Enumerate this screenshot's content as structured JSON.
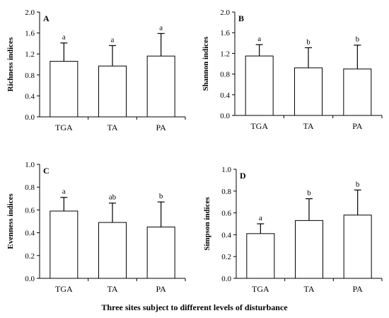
{
  "figure": {
    "xlabel": "Three sites subject to different levels of disturbance"
  },
  "chart_data": [
    {
      "type": "bar",
      "panel": "A",
      "ylabel": "Richness indices",
      "categories": [
        "TGA",
        "TA",
        "PA"
      ],
      "values": [
        1.06,
        0.97,
        1.16
      ],
      "errors": [
        0.35,
        0.39,
        0.43
      ],
      "letters": [
        "a",
        "a",
        "a"
      ],
      "ylim": [
        0,
        2.0
      ],
      "yticks": [
        "0.0",
        "0.4",
        "0.8",
        "1.2",
        "1.6",
        "2.0"
      ]
    },
    {
      "type": "bar",
      "panel": "B",
      "ylabel": "Shannon indices",
      "categories": [
        "TGA",
        "TA",
        "PA"
      ],
      "values": [
        1.15,
        0.92,
        0.9
      ],
      "errors": [
        0.22,
        0.39,
        0.46
      ],
      "letters": [
        "a",
        "b",
        "b"
      ],
      "ylim": [
        0,
        2.0
      ],
      "yticks": [
        "0.0",
        "0.4",
        "0.8",
        "1.2",
        "1.6",
        "2.0"
      ]
    },
    {
      "type": "bar",
      "panel": "C",
      "ylabel": "Evenness indices",
      "categories": [
        "TGA",
        "TA",
        "PA"
      ],
      "values": [
        0.59,
        0.49,
        0.45
      ],
      "errors": [
        0.12,
        0.17,
        0.22
      ],
      "letters": [
        "a",
        "ab",
        "b"
      ],
      "ylim": [
        0,
        1.0
      ],
      "yticks": [
        "0.0",
        "0.2",
        "0.4",
        "0.6",
        "0.8",
        "1.0"
      ]
    },
    {
      "type": "bar",
      "panel": "D",
      "ylabel": "Simpson indices",
      "categories": [
        "TGA",
        "TA",
        "PA"
      ],
      "values": [
        0.41,
        0.53,
        0.58
      ],
      "errors": [
        0.09,
        0.2,
        0.23
      ],
      "letters": [
        "a",
        "b",
        "b"
      ],
      "ylim": [
        0,
        1.0
      ],
      "yticks": [
        "0.0",
        "0.2",
        "0.4",
        "0.6",
        "0.8",
        "1.0"
      ]
    }
  ]
}
